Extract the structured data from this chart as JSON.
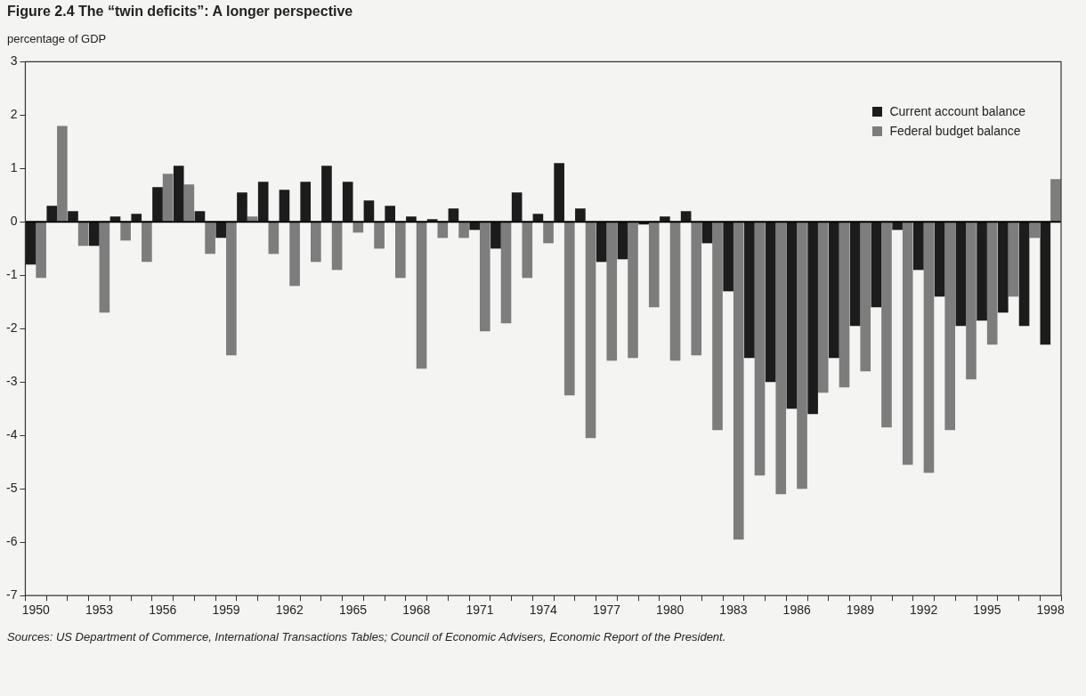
{
  "chart_data": {
    "type": "bar",
    "title": "Figure 2.4  The “twin deficits”: A longer perspective",
    "ylabel": "percentage of GDP",
    "categories": [
      "1950",
      null,
      null,
      "1953",
      null,
      null,
      "1956",
      null,
      null,
      "1959",
      null,
      null,
      "1962",
      null,
      null,
      "1965",
      null,
      null,
      "1968",
      null,
      null,
      "1971",
      null,
      null,
      "1974",
      null,
      null,
      "1977",
      null,
      null,
      "1980",
      null,
      null,
      "1983",
      null,
      null,
      "1986",
      null,
      null,
      "1989",
      null,
      null,
      "1992",
      null,
      null,
      "1995",
      null,
      null,
      "1998"
    ],
    "series": [
      {
        "name": "Current account balance",
        "color": "#1c1c1c",
        "values": [
          -0.8,
          0.3,
          0.2,
          -0.45,
          0.1,
          0.15,
          0.65,
          1.05,
          0.2,
          -0.3,
          0.55,
          0.75,
          0.6,
          0.75,
          1.05,
          0.75,
          0.4,
          0.3,
          0.1,
          0.05,
          0.25,
          -0.15,
          -0.5,
          0.55,
          0.15,
          1.1,
          0.25,
          -0.75,
          -0.7,
          -0.05,
          0.1,
          0.2,
          -0.4,
          -1.3,
          -2.55,
          -3.0,
          -3.5,
          -3.6,
          -2.55,
          -1.95,
          -1.6,
          -0.15,
          -0.9,
          -1.4,
          -1.95,
          -1.85,
          -1.7,
          -1.95,
          -2.3
        ]
      },
      {
        "name": "Federal budget balance",
        "color": "#7d7d7d",
        "values": [
          -1.05,
          1.8,
          -0.45,
          -1.7,
          -0.35,
          -0.75,
          0.9,
          0.7,
          -0.6,
          -2.5,
          0.1,
          -0.6,
          -1.2,
          -0.75,
          -0.9,
          -0.2,
          -0.5,
          -1.05,
          -2.75,
          -0.3,
          -0.3,
          -2.05,
          -1.9,
          -1.05,
          -0.4,
          -3.25,
          -4.05,
          -2.6,
          -2.55,
          -1.6,
          -2.6,
          -2.5,
          -3.9,
          -5.95,
          -4.75,
          -5.1,
          -5.0,
          -3.2,
          -3.1,
          -2.8,
          -3.85,
          -4.55,
          -4.7,
          -3.9,
          -2.95,
          -2.3,
          -1.4,
          -0.3,
          0.8
        ]
      }
    ],
    "ylim": [
      -7,
      3
    ],
    "yticks": [
      -7,
      -6,
      -5,
      -4,
      -3,
      -2,
      -1,
      0,
      1,
      2,
      3
    ],
    "ref_lines": [
      {
        "axis": "y",
        "value": 0,
        "color": "#000000"
      }
    ],
    "legend": "top right",
    "annotations": [
      "Sources: US Department of Commerce, International Transactions Tables; Council of Economic Advisers, Economic Report of the President."
    ]
  }
}
